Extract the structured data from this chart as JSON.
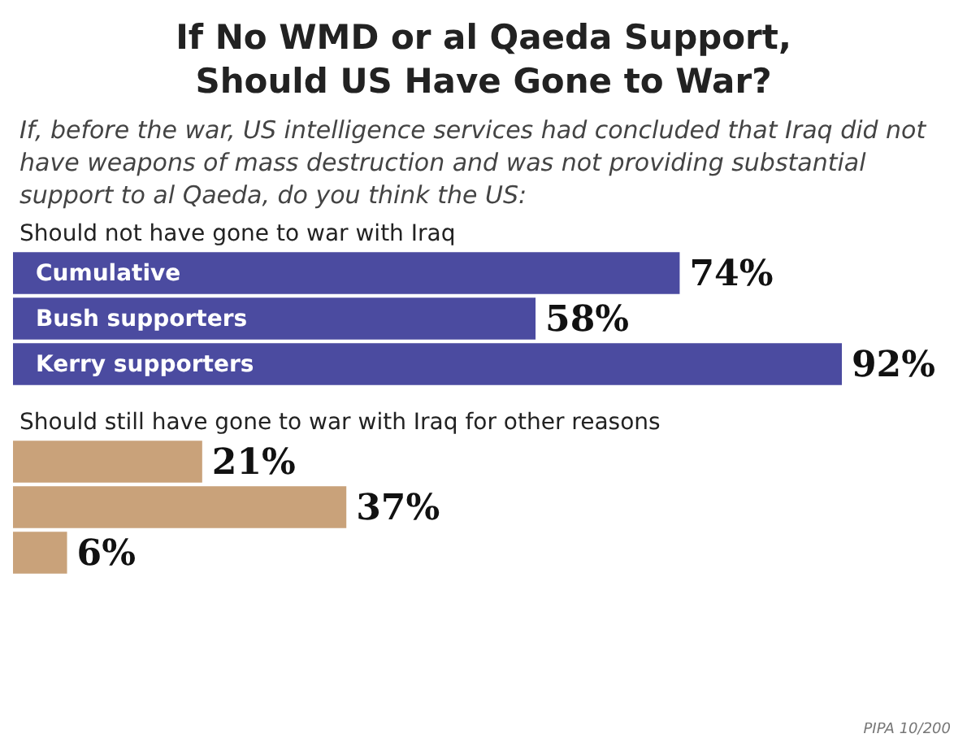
{
  "chart_data": [
    {
      "type": "bar",
      "orientation": "horizontal",
      "title": "If No WMD or al Qaeda Support,\nShould US Have Gone to War?",
      "subtitle": "If, before the war, US intelligence services had concluded that Iraq did not have weapons of mass destruction and was not providing substantial support to al Qaeda, do you think the US:",
      "annotations": [
        "Should not have gone to war with Iraq"
      ],
      "categories": [
        "Cumulative",
        "Bush supporters",
        "Kerry supporters"
      ],
      "values": [
        74,
        58,
        92
      ],
      "value_labels": [
        "74%",
        "58%",
        "92%"
      ],
      "colors": [
        "#4b4ba0",
        "#4b4ba0",
        "#4b4ba0"
      ]
    },
    {
      "type": "bar",
      "orientation": "horizontal",
      "annotations": [
        "Should still have gone to war with Iraq for other reasons",
        "PIPA 10/200"
      ],
      "categories": [
        null,
        null,
        null
      ],
      "values": [
        21,
        37,
        6
      ],
      "value_labels": [
        "21%",
        "37%",
        "6%"
      ],
      "colors": [
        "#c9a27a",
        "#c9a27a",
        "#c9a27a"
      ]
    }
  ]
}
